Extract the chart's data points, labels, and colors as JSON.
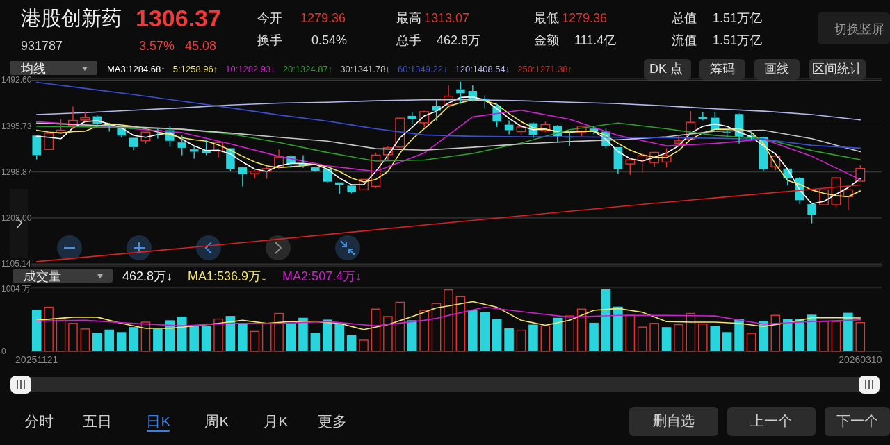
{
  "chart_data": [
    {
      "type": "candlestick",
      "title": "港股创新药",
      "subtitle": "931787",
      "legend_title": "均线",
      "legend": "top",
      "grid": "y",
      "tick_labels": "y",
      "annotations": [
        "1306.37",
        "3.57%",
        "45.08",
        "今开",
        "1279.36",
        "最高",
        "1313.07",
        "最低",
        "1279.36",
        "总值",
        "1.51万亿",
        "换手",
        "0.54%",
        "总手",
        "462.8万",
        "金额",
        "111.4亿",
        "流值",
        "1.51万亿",
        "切换竖屏",
        "DK 点",
        "筹码",
        "画线",
        "区间统计",
        "分时",
        "五日",
        "日K",
        "周K",
        "月K",
        "更多",
        "删自选",
        "上一个",
        "下一个"
      ],
      "categories": [
        null,
        null,
        null,
        null,
        null,
        null,
        null,
        null,
        null,
        null,
        null,
        null,
        null,
        null,
        null,
        null,
        null,
        null,
        null,
        null,
        null,
        null,
        null,
        null,
        null,
        null,
        null,
        null,
        null,
        null,
        null,
        null,
        null,
        null,
        null,
        null,
        null,
        null,
        null,
        null,
        null,
        null,
        null,
        null,
        null,
        null,
        null,
        null,
        null,
        null,
        null,
        null,
        null,
        null,
        null,
        null,
        null,
        null,
        null,
        null,
        null,
        null,
        null,
        null,
        null,
        null,
        null,
        null,
        null
      ],
      "ylim": [
        1101,
        1496
      ],
      "yticks": [
        {
          "value": 1105.14,
          "label": "1105.14"
        },
        {
          "value": 1202,
          "label": "1202.00"
        },
        {
          "value": 1298.87,
          "label": "1298.87"
        },
        {
          "value": 1395.73,
          "label": "1395.73"
        },
        {
          "value": 1492.6,
          "label": "1492.60"
        }
      ],
      "ohlc": [
        [
          1375.7,
          1375.7,
          1325.6,
          1334.4
        ],
        [
          1346.5,
          1383,
          1346.5,
          1380.6
        ],
        [
          1382.1,
          1409.8,
          1380.6,
          1387
        ],
        [
          1396.7,
          1436.6,
          1390.4,
          1407.4
        ],
        [
          1408.4,
          1425.9,
          1405,
          1413.2
        ],
        [
          1416.2,
          1419.6,
          1397.7,
          1400.1
        ],
        [
          1400.1,
          1402.5,
          1384,
          1395.2
        ],
        [
          1391.8,
          1395.2,
          1372.3,
          1375.7
        ],
        [
          1370.9,
          1372.3,
          1345.1,
          1351.4
        ],
        [
          1364.6,
          1384,
          1358.7,
          1383
        ],
        [
          1387,
          1391.8,
          1369.4,
          1385
        ],
        [
          1387,
          1395.2,
          1352.9,
          1364.6
        ],
        [
          1361.1,
          1375.7,
          1334.4,
          1349.9
        ],
        [
          1346.5,
          1353.8,
          1327.1,
          1341.7
        ],
        [
          1345.1,
          1367.5,
          1334.4,
          1339.2
        ],
        [
          1343.1,
          1361.1,
          1329.5,
          1361.1
        ],
        [
          1349,
          1349,
          1300.3,
          1305.2
        ],
        [
          1308.6,
          1310,
          1268.6,
          1294.4
        ],
        [
          1295.4,
          1302.7,
          1285.7,
          1300.3
        ],
        [
          1300.3,
          1309,
          1284.7,
          1306.1
        ],
        [
          1310,
          1346.5,
          1307.6,
          1330.5
        ],
        [
          1332,
          1334.4,
          1307.6,
          1315.9
        ],
        [
          1317.3,
          1334.4,
          1307.6,
          1312.5
        ],
        [
          1308.6,
          1310,
          1299.3,
          1301.3
        ],
        [
          1305.2,
          1306.1,
          1276.9,
          1278.4
        ],
        [
          1276.9,
          1276.9,
          1252.6,
          1272
        ],
        [
          1270.1,
          1271.1,
          1254,
          1256.5
        ],
        [
          1261.3,
          1283.3,
          1261.3,
          1283.3
        ],
        [
          1268.6,
          1339.2,
          1265.2,
          1334.4
        ],
        [
          1335.3,
          1353.8,
          1324.6,
          1349.9
        ],
        [
          1351.4,
          1413.2,
          1349.9,
          1412.3
        ],
        [
          1417.1,
          1425.9,
          1400.1,
          1409.8
        ],
        [
          1402.5,
          1427.8,
          1392.8,
          1425.9
        ],
        [
          1437.6,
          1451.2,
          1407.4,
          1427.8
        ],
        [
          1440.5,
          1481.4,
          1440.5,
          1458.5
        ],
        [
          1473.1,
          1489.2,
          1442.5,
          1464.8
        ],
        [
          1469.7,
          1481.4,
          1447.3,
          1451.2
        ],
        [
          1453.7,
          1460,
          1432.7,
          1451.2
        ],
        [
          1439,
          1442.5,
          1393.8,
          1405
        ],
        [
          1398.6,
          1407.4,
          1378.2,
          1387
        ],
        [
          1384,
          1400.1,
          1375.7,
          1393.8
        ],
        [
          1401.6,
          1403.5,
          1370.9,
          1377.2
        ],
        [
          1385.5,
          1405,
          1383.1,
          1398.6
        ],
        [
          1396.7,
          1397.7,
          1361.1,
          1374.3
        ],
        [
          1373.3,
          1383,
          1353.8,
          1371.4
        ],
        [
          1383,
          1396.7,
          1374.3,
          1395.2
        ],
        [
          1390.4,
          1396.7,
          1378.2,
          1384
        ],
        [
          1384,
          1391.8,
          1346.5,
          1353.8
        ],
        [
          1351.4,
          1351.4,
          1295.4,
          1304.2
        ],
        [
          1315.9,
          1327.1,
          1293,
          1324.6
        ],
        [
          1323.6,
          1339.2,
          1297.9,
          1333.4
        ],
        [
          1318.8,
          1341.7,
          1310,
          1340.2
        ],
        [
          1319.8,
          1349,
          1309,
          1333.4
        ],
        [
          1359.7,
          1375.7,
          1354.8,
          1364.6
        ],
        [
          1368.4,
          1426.9,
          1368.4,
          1403.5
        ],
        [
          1414.7,
          1425.9,
          1408.4,
          1410.8
        ],
        [
          1413.2,
          1424.4,
          1385.5,
          1387.9
        ],
        [
          1383,
          1390.4,
          1372.3,
          1380.6
        ],
        [
          1421,
          1422,
          1358.7,
          1372.3
        ],
        [
          1375.7,
          1383,
          1367.5,
          1372.3
        ],
        [
          1372.3,
          1373.3,
          1300.3,
          1304.2
        ],
        [
          1310,
          1332,
          1302.7,
          1332
        ],
        [
          1306.1,
          1306.1,
          1271.1,
          1285.7
        ],
        [
          1286.6,
          1288.1,
          1231.1,
          1239.4
        ],
        [
          1231.1,
          1234.6,
          1190.7,
          1207.8
        ],
        [
          1229.7,
          1261.3,
          1229.7,
          1261.3
        ],
        [
          1229.7,
          1288.1,
          1224.8,
          1286.6
        ],
        [
          1246.7,
          1262.3,
          1217.5,
          1261.3
        ],
        [
          1279.36,
          1313.07,
          1279.36,
          1306.37
        ]
      ],
      "colors": [
        "#2ad4dc",
        "#e8312f",
        "#e8312f",
        "#e8312f",
        "#e8312f",
        "#2ad4dc",
        "#2ad4dc",
        "#2ad4dc",
        "#2ad4dc",
        "#e8312f",
        "#2ad4dc",
        "#2ad4dc",
        "#2ad4dc",
        "#2ad4dc",
        "#2ad4dc",
        "#e8312f",
        "#2ad4dc",
        "#2ad4dc",
        "#e8312f",
        "#e8312f",
        "#e8312f",
        "#2ad4dc",
        "#2ad4dc",
        "#2ad4dc",
        "#2ad4dc",
        "#2ad4dc",
        "#2ad4dc",
        "#e8312f",
        "#e8312f",
        "#e8312f",
        "#e8312f",
        "#2ad4dc",
        "#e8312f",
        "#2ad4dc",
        "#e8312f",
        "#2ad4dc",
        "#2ad4dc",
        "#2ad4dc",
        "#2ad4dc",
        "#2ad4dc",
        "#e8312f",
        "#2ad4dc",
        "#e8312f",
        "#2ad4dc",
        "#2ad4dc",
        "#e8312f",
        "#2ad4dc",
        "#2ad4dc",
        "#2ad4dc",
        "#e8312f",
        "#e8312f",
        "#e8312f",
        "#e8312f",
        "#e8312f",
        "#e8312f",
        "#2ad4dc",
        "#2ad4dc",
        "#2ad4dc",
        "#2ad4dc",
        "#2ad4dc",
        "#2ad4dc",
        "#e8312f",
        "#2ad4dc",
        "#2ad4dc",
        "#2ad4dc",
        "#e8312f",
        "#e8312f",
        "#e8312f",
        "#e8312f"
      ],
      "series": [
        {
          "name": "MA3:1284.68↑",
          "type": "line",
          "color": "#ffffff",
          "values": [
            1374,
            1372,
            1369,
            1392,
            1405,
            1407,
            1400,
            1392,
            1376,
            1372,
            1378,
            1381,
            1368,
            1354,
            1344,
            1345,
            1337,
            1320,
            1305,
            1300,
            1312,
            1317,
            1317,
            1315,
            1305,
            1286,
            1272,
            1272,
            1300,
            1334,
            1371,
            1393,
            1417,
            1427,
            1444,
            1456,
            1457,
            1451,
            1432,
            1412,
            1395,
            1388,
            1389,
            1384,
            1383,
            1385,
            1385,
            1368,
            1342,
            1327,
            1322,
            1330,
            1339,
            1354,
            1381,
            1395,
            1400,
            1395,
            1383,
            1373,
            1354,
            1337,
            1305,
            1261,
            1232,
            1237,
            1252,
            1266,
            1284.68
          ]
        },
        {
          "name": "5:1258.96↑",
          "type": "line",
          "color": "#f5e663",
          "values": [
            1387,
            1383,
            1381,
            1384,
            1385,
            1395,
            1400,
            1398,
            1395,
            1390,
            1383,
            1378,
            1371,
            1367,
            1364,
            1356,
            1345,
            1332,
            1320,
            1312,
            1308,
            1310,
            1312,
            1315,
            1310,
            1300,
            1286,
            1278,
            1283,
            1300,
            1339,
            1368,
            1390,
            1412,
            1437,
            1445,
            1451,
            1449,
            1441,
            1422,
            1405,
            1392,
            1389,
            1384,
            1383,
            1385,
            1385,
            1376,
            1359,
            1345,
            1335,
            1330,
            1329,
            1344,
            1368,
            1381,
            1389,
            1389,
            1390,
            1383,
            1359,
            1315,
            1281,
            1273,
            1261,
            1254,
            1249,
            1247,
            1258.96
          ]
        },
        {
          "name": "10:1282.93↓",
          "type": "line",
          "color": "#d21fd2",
          "values": [
            1405,
            null,
            null,
            null,
            1398,
            null,
            null,
            null,
            1390,
            null,
            null,
            null,
            1382,
            null,
            null,
            null,
            1358,
            null,
            null,
            null,
            1332,
            null,
            null,
            null,
            1312,
            null,
            null,
            null,
            1300,
            null,
            null,
            null,
            1339,
            null,
            null,
            null,
            1415,
            null,
            null,
            null,
            1429,
            null,
            null,
            null,
            1410,
            null,
            null,
            null,
            1376,
            null,
            null,
            null,
            1354,
            null,
            null,
            null,
            1359,
            null,
            null,
            null,
            1368,
            null,
            null,
            null,
            1332,
            null,
            null,
            null,
            1282.93
          ]
        },
        {
          "name": "20:1324.87↑",
          "type": "line",
          "color": "#2ea02e",
          "values": [
            1395,
            null,
            null,
            null,
            1394,
            null,
            null,
            null,
            1392,
            null,
            null,
            null,
            1389,
            null,
            null,
            null,
            1379,
            null,
            null,
            null,
            1361,
            null,
            null,
            null,
            1340,
            null,
            null,
            null,
            1322,
            null,
            null,
            null,
            1324,
            null,
            null,
            null,
            1338,
            null,
            null,
            null,
            1360,
            null,
            null,
            null,
            1388,
            null,
            null,
            null,
            1402,
            null,
            null,
            null,
            1390,
            null,
            null,
            null,
            1376,
            null,
            null,
            null,
            1369,
            null,
            null,
            null,
            1344,
            null,
            null,
            null,
            1324.87
          ]
        },
        {
          "name": "30:1341.78↓",
          "type": "line",
          "color": "#c8c8c8",
          "values": [
            1402,
            null,
            null,
            null,
            1398,
            null,
            null,
            null,
            1394,
            null,
            null,
            null,
            1389,
            null,
            null,
            null,
            1381,
            null,
            null,
            null,
            1372,
            null,
            null,
            null,
            1364,
            null,
            null,
            null,
            1348,
            null,
            null,
            null,
            1345,
            null,
            null,
            null,
            1351,
            null,
            null,
            null,
            1358,
            null,
            null,
            null,
            1363,
            null,
            null,
            null,
            1367,
            null,
            null,
            null,
            1373,
            null,
            null,
            null,
            1385,
            null,
            null,
            null,
            1387,
            null,
            null,
            null,
            1369,
            null,
            null,
            null,
            1341.78
          ]
        },
        {
          "name": "60:1349.22↓",
          "type": "line",
          "color": "#3b4fd6",
          "values": [
            1488,
            null,
            null,
            null,
            1475,
            null,
            null,
            null,
            1462,
            null,
            null,
            null,
            1448,
            null,
            null,
            null,
            1434,
            null,
            null,
            null,
            1419,
            null,
            null,
            null,
            1406,
            null,
            null,
            null,
            1390,
            null,
            null,
            null,
            1377,
            null,
            null,
            null,
            1374,
            null,
            null,
            null,
            1373,
            null,
            null,
            null,
            1373,
            null,
            null,
            null,
            1372,
            null,
            null,
            null,
            1371,
            null,
            null,
            null,
            1370,
            null,
            null,
            null,
            1368,
            null,
            null,
            null,
            1355,
            null,
            null,
            null,
            1349.22
          ]
        },
        {
          "name": "120:1408.54↓",
          "type": "line",
          "color": "#b4b9ee",
          "values": [
            1420,
            null,
            null,
            null,
            1424,
            null,
            null,
            null,
            1429,
            null,
            null,
            null,
            1434,
            null,
            null,
            null,
            1440,
            null,
            null,
            null,
            1444,
            null,
            null,
            null,
            1446,
            null,
            null,
            null,
            1449,
            null,
            null,
            null,
            1451,
            null,
            null,
            null,
            1451,
            null,
            null,
            null,
            1449,
            null,
            null,
            null,
            1446,
            null,
            null,
            null,
            1443,
            null,
            null,
            null,
            1438,
            null,
            null,
            null,
            1432,
            null,
            null,
            null,
            1427,
            null,
            null,
            null,
            1420,
            null,
            null,
            null,
            1408.54
          ]
        },
        {
          "name": "250:1271.38↑",
          "type": "line",
          "color": "#e02020",
          "values": [
            1110,
            null,
            null,
            null,
            null,
            null,
            null,
            null,
            null,
            null,
            null,
            null,
            null,
            null,
            null,
            null,
            null,
            1150,
            null,
            null,
            null,
            null,
            null,
            null,
            null,
            null,
            null,
            null,
            null,
            null,
            null,
            null,
            null,
            null,
            1192,
            null,
            null,
            null,
            null,
            null,
            null,
            null,
            null,
            null,
            null,
            null,
            null,
            null,
            null,
            null,
            null,
            1233,
            null,
            null,
            null,
            null,
            null,
            null,
            null,
            null,
            null,
            null,
            null,
            null,
            null,
            null,
            null,
            null,
            1271.38
          ]
        }
      ]
    },
    {
      "type": "bar",
      "legend_title": "成交量",
      "legend": "top",
      "grid": "y",
      "annotations": [
        "462.8万↓"
      ],
      "categories": [
        "20251121",
        null,
        null,
        null,
        null,
        null,
        null,
        null,
        null,
        null,
        null,
        null,
        null,
        null,
        null,
        null,
        null,
        null,
        null,
        null,
        null,
        null,
        null,
        null,
        null,
        null,
        null,
        null,
        null,
        null,
        null,
        null,
        null,
        null,
        null,
        null,
        null,
        null,
        null,
        null,
        null,
        null,
        null,
        null,
        null,
        null,
        null,
        null,
        null,
        null,
        null,
        null,
        null,
        null,
        null,
        null,
        null,
        null,
        null,
        null,
        null,
        null,
        null,
        null,
        null,
        null,
        null,
        null,
        "20260310"
      ],
      "ylim": [
        0,
        1030
      ],
      "yticks": [
        0,
        {
          "value": 1004,
          "label": "1004 万"
        }
      ],
      "values": [
        670,
        710,
        520,
        450,
        360,
        300,
        350,
        310,
        390,
        470,
        360,
        500,
        560,
        410,
        410,
        520,
        570,
        450,
        320,
        450,
        610,
        450,
        540,
        300,
        510,
        450,
        260,
        180,
        680,
        560,
        790,
        500,
        660,
        770,
        990,
        880,
        660,
        630,
        520,
        370,
        340,
        430,
        410,
        540,
        570,
        680,
        460,
        1000,
        720,
        580,
        390,
        450,
        390,
        430,
        610,
        440,
        410,
        310,
        520,
        290,
        490,
        580,
        520,
        520,
        590,
        480,
        480,
        620,
        462.8
      ],
      "colors": [
        "#2ad4dc",
        "#e8312f",
        "#e8312f",
        "#e8312f",
        "#e8312f",
        "#2ad4dc",
        "#2ad4dc",
        "#2ad4dc",
        "#2ad4dc",
        "#e8312f",
        "#2ad4dc",
        "#2ad4dc",
        "#2ad4dc",
        "#2ad4dc",
        "#2ad4dc",
        "#e8312f",
        "#2ad4dc",
        "#2ad4dc",
        "#e8312f",
        "#e8312f",
        "#e8312f",
        "#2ad4dc",
        "#2ad4dc",
        "#2ad4dc",
        "#2ad4dc",
        "#2ad4dc",
        "#2ad4dc",
        "#e8312f",
        "#e8312f",
        "#e8312f",
        "#e8312f",
        "#2ad4dc",
        "#e8312f",
        "#e8312f",
        "#e8312f",
        "#e8312f",
        "#2ad4dc",
        "#2ad4dc",
        "#2ad4dc",
        "#2ad4dc",
        "#e8312f",
        "#2ad4dc",
        "#e8312f",
        "#2ad4dc",
        "#e8312f",
        "#e8312f",
        "#2ad4dc",
        "#2ad4dc",
        "#2ad4dc",
        "#e8312f",
        "#e8312f",
        "#e8312f",
        "#2ad4dc",
        "#e8312f",
        "#e8312f",
        "#e8312f",
        "#2ad4dc",
        "#2ad4dc",
        "#2ad4dc",
        "#e8312f",
        "#2ad4dc",
        "#e8312f",
        "#2ad4dc",
        "#2ad4dc",
        "#2ad4dc",
        "#e8312f",
        "#e8312f",
        "#2ad4dc",
        "#e8312f"
      ],
      "series": [
        {
          "name": "MA1:536.9万↓",
          "type": "line",
          "color": "#f5e663",
          "values": [
            500,
            null,
            null,
            550,
            null,
            550,
            null,
            450,
            null,
            370,
            null,
            370,
            null,
            410,
            null,
            450,
            null,
            500,
            null,
            450,
            null,
            480,
            null,
            480,
            null,
            450,
            null,
            350,
            null,
            430,
            null,
            560,
            null,
            700,
            730,
            null,
            800,
            null,
            710,
            null,
            500,
            null,
            420,
            null,
            500,
            null,
            660,
            null,
            690,
            null,
            630,
            null,
            480,
            null,
            470,
            null,
            470,
            null,
            450,
            null,
            400,
            null,
            460,
            null,
            540,
            null,
            540,
            null,
            536.9
          ]
        },
        {
          "name": "MA2:507.4万↓",
          "type": "line",
          "color": "#d21fd2",
          "values": [
            490,
            null,
            null,
            null,
            500,
            null,
            null,
            null,
            450,
            null,
            null,
            null,
            410,
            null,
            null,
            null,
            450,
            null,
            null,
            null,
            450,
            null,
            null,
            null,
            480,
            null,
            null,
            null,
            410,
            null,
            null,
            null,
            500,
            530,
            580,
            null,
            null,
            710,
            null,
            null,
            640,
            null,
            null,
            null,
            550,
            null,
            null,
            null,
            580,
            null,
            null,
            null,
            580,
            null,
            null,
            null,
            570,
            null,
            null,
            null,
            440,
            null,
            null,
            null,
            480,
            null,
            null,
            null,
            507.4
          ]
        }
      ]
    }
  ]
}
